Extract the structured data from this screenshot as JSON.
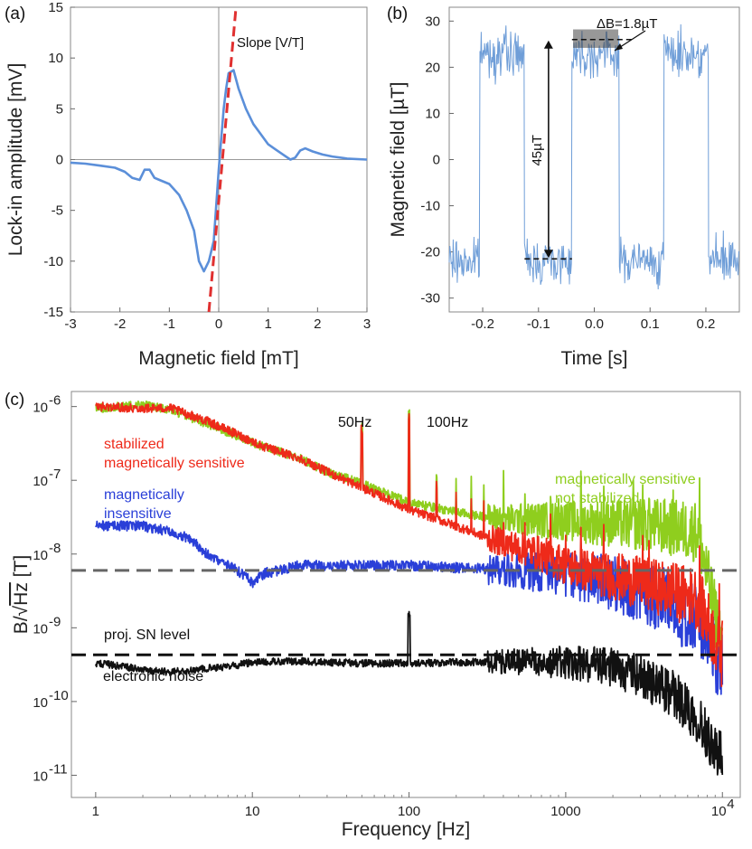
{
  "chart_data": [
    {
      "panel": "(a)",
      "type": "line",
      "xlabel": "Magnetic field [mT]",
      "ylabel": "Lock-in amplitude [mV]",
      "xlim": [
        -3,
        3
      ],
      "ylim": [
        -15,
        15
      ],
      "xticks": [
        -3,
        -2,
        -1,
        0,
        1,
        2,
        3
      ],
      "yticks": [
        -15,
        -10,
        -5,
        0,
        5,
        10,
        15
      ],
      "series": [
        {
          "color": "#5b8fd9",
          "x": [
            -3.0,
            -2.7,
            -2.4,
            -2.1,
            -1.9,
            -1.75,
            -1.6,
            -1.5,
            -1.4,
            -1.3,
            -1.2,
            -1.0,
            -0.8,
            -0.65,
            -0.5,
            -0.4,
            -0.3,
            -0.2,
            -0.1,
            0.0,
            0.05,
            0.1,
            0.15,
            0.2,
            0.3,
            0.4,
            0.55,
            0.7,
            0.85,
            1.0,
            1.15,
            1.3,
            1.45,
            1.55,
            1.65,
            1.75,
            1.9,
            2.1,
            2.3,
            2.6,
            3.0
          ],
          "y": [
            -0.3,
            -0.4,
            -0.6,
            -0.8,
            -1.2,
            -1.8,
            -2.0,
            -1.0,
            -1.0,
            -1.8,
            -2.0,
            -2.4,
            -3.5,
            -5.0,
            -7.0,
            -10.0,
            -11.0,
            -10.0,
            -8.0,
            -1.0,
            2.0,
            5.0,
            7.0,
            8.5,
            8.8,
            7.0,
            5.0,
            3.5,
            2.5,
            1.5,
            1.0,
            0.5,
            0.0,
            0.2,
            0.9,
            1.1,
            0.8,
            0.5,
            0.3,
            0.1,
            0.0
          ]
        },
        {
          "name": "Slope [V/T]",
          "style": "dashed",
          "color": "#e03030",
          "x": [
            -0.2,
            0.35
          ],
          "y": [
            -15,
            15
          ]
        }
      ],
      "annotations": [
        "Slope [V/T]"
      ]
    },
    {
      "panel": "(b)",
      "type": "line",
      "xlabel": "Time [s]",
      "ylabel": "Magnetic field [µT]",
      "xlim": [
        -0.26,
        0.26
      ],
      "ylim": [
        -33,
        33
      ],
      "xticks": [
        -0.2,
        -0.1,
        0.0,
        0.1,
        0.2
      ],
      "xtick_labels": [
        "-0.2",
        "-0.1",
        "0.0",
        "0.1",
        "0.2"
      ],
      "yticks": [
        -30,
        -20,
        -10,
        0,
        10,
        20,
        30
      ],
      "square_wave": {
        "high_level": 23,
        "low_level": -22,
        "noise_amplitude": 3,
        "edges": [
          -0.205,
          -0.125,
          -0.04,
          0.045,
          0.125,
          0.205
        ],
        "start_level": "low"
      },
      "series": [
        {
          "color": "#6f9ed8",
          "x": [
            -0.26,
            -0.205,
            -0.205,
            -0.125,
            -0.125,
            -0.04,
            -0.04,
            0.045,
            0.045,
            0.125,
            0.125,
            0.205,
            0.205,
            0.26
          ],
          "y": [
            -22,
            -22,
            23,
            23,
            -22,
            -22,
            23,
            23,
            -22,
            -22,
            23,
            23,
            -22,
            -22
          ]
        }
      ],
      "annotations": [
        "ΔB=1.8µT",
        "45µT"
      ],
      "marker_levels": [
        26,
        -21.5
      ]
    },
    {
      "panel": "(c)",
      "type": "line",
      "xscale": "log",
      "yscale": "log",
      "xlabel": "Frequency [Hz]",
      "ylabel": "B/√Hz [T]",
      "ylabel_parts": [
        "B/",
        "√",
        "Hz",
        " [T]"
      ],
      "xlim": [
        0.7,
        13000
      ],
      "ylim": [
        5e-12,
        1.6e-06
      ],
      "xtick_labels": [
        "1",
        "10",
        "100",
        "1000",
        "10"
      ],
      "xtick_sup": "4",
      "ytick_labels": [
        "10",
        "10",
        "10",
        "10",
        "10",
        "10"
      ],
      "ytick_sups": [
        "-6",
        "-7",
        "-8",
        "-9",
        "-10",
        "-11"
      ],
      "yticks": [
        1e-06,
        1e-07,
        1e-08,
        1e-09,
        1e-10,
        1e-11
      ],
      "series": [
        {
          "label_lines": [
            "magnetically sensitive",
            "not stabilized"
          ],
          "color": "#8fce1e",
          "x": [
            1,
            2,
            3,
            5,
            8,
            12,
            20,
            30,
            50,
            80,
            100,
            150,
            250,
            400,
            700,
            1000,
            2000,
            4000,
            7000,
            10000
          ],
          "y": [
            9.5e-07,
            1.05e-06,
            9e-07,
            6e-07,
            4e-07,
            2.8e-07,
            2e-07,
            1.3e-07,
            9e-08,
            6e-08,
            5e-08,
            4.2e-08,
            3.4e-08,
            3e-08,
            2.9e-08,
            2.8e-08,
            2.6e-08,
            2.4e-08,
            2e-08,
            5e-10
          ]
        },
        {
          "label_lines": [
            "stabilized",
            "magnetically sensitive"
          ],
          "color": "#ee2a1a",
          "x": [
            1,
            2,
            3,
            5,
            8,
            12,
            20,
            30,
            50,
            80,
            100,
            150,
            250,
            400,
            700,
            1000,
            2000,
            4000,
            7000,
            10000
          ],
          "y": [
            1e-06,
            9.5e-07,
            9.5e-07,
            6.5e-07,
            4.2e-07,
            2.8e-07,
            2e-07,
            1.3e-07,
            8e-08,
            5e-08,
            4e-08,
            3e-08,
            2e-08,
            1.4e-08,
            1e-08,
            7e-09,
            5e-09,
            3.5e-09,
            2.5e-09,
            4e-10
          ]
        },
        {
          "label_lines": [
            "magnetically",
            "insensitive"
          ],
          "color": "#2a3fd8",
          "x": [
            1,
            2,
            3,
            4,
            5,
            6,
            7,
            8,
            9,
            10,
            12,
            15,
            20,
            30,
            50,
            100,
            200,
            500,
            1000,
            2000,
            4000,
            7000,
            10000
          ],
          "y": [
            2.4e-08,
            2.4e-08,
            2e-08,
            1.6e-08,
            1.05e-08,
            8e-09,
            7e-09,
            6e-09,
            5e-09,
            4e-09,
            5.5e-09,
            6e-09,
            7e-09,
            7e-09,
            7e-09,
            7e-09,
            6.5e-09,
            6e-09,
            5.5e-09,
            4e-09,
            2.5e-09,
            1.2e-09,
            3e-10
          ]
        },
        {
          "label_lines": [
            "electronic noise"
          ],
          "color": "#111111",
          "x": [
            1,
            1.5,
            2,
            3,
            5,
            8,
            10,
            15,
            20,
            30,
            50,
            100,
            200,
            500,
            1000,
            2000,
            3000,
            5000,
            7000,
            10000
          ],
          "y": [
            3.3e-10,
            3e-10,
            2.7e-10,
            2.5e-10,
            2.8e-10,
            3.1e-10,
            3.4e-10,
            3.5e-10,
            3.5e-10,
            3.4e-10,
            3.3e-10,
            3.3e-10,
            3.4e-10,
            3.5e-10,
            3.4e-10,
            2.9e-10,
            2.2e-10,
            1.2e-10,
            6e-11,
            1.5e-11
          ]
        }
      ],
      "reference_lines": [
        {
          "style": "dashed",
          "color": "#666666",
          "y": 6e-09
        },
        {
          "style": "dashed",
          "color": "#111111",
          "y": 4.3e-10,
          "label": "proj. SN level"
        }
      ],
      "peaks": [
        {
          "label": "50Hz",
          "x": 50
        },
        {
          "label": "100Hz",
          "x": 100
        }
      ]
    }
  ]
}
